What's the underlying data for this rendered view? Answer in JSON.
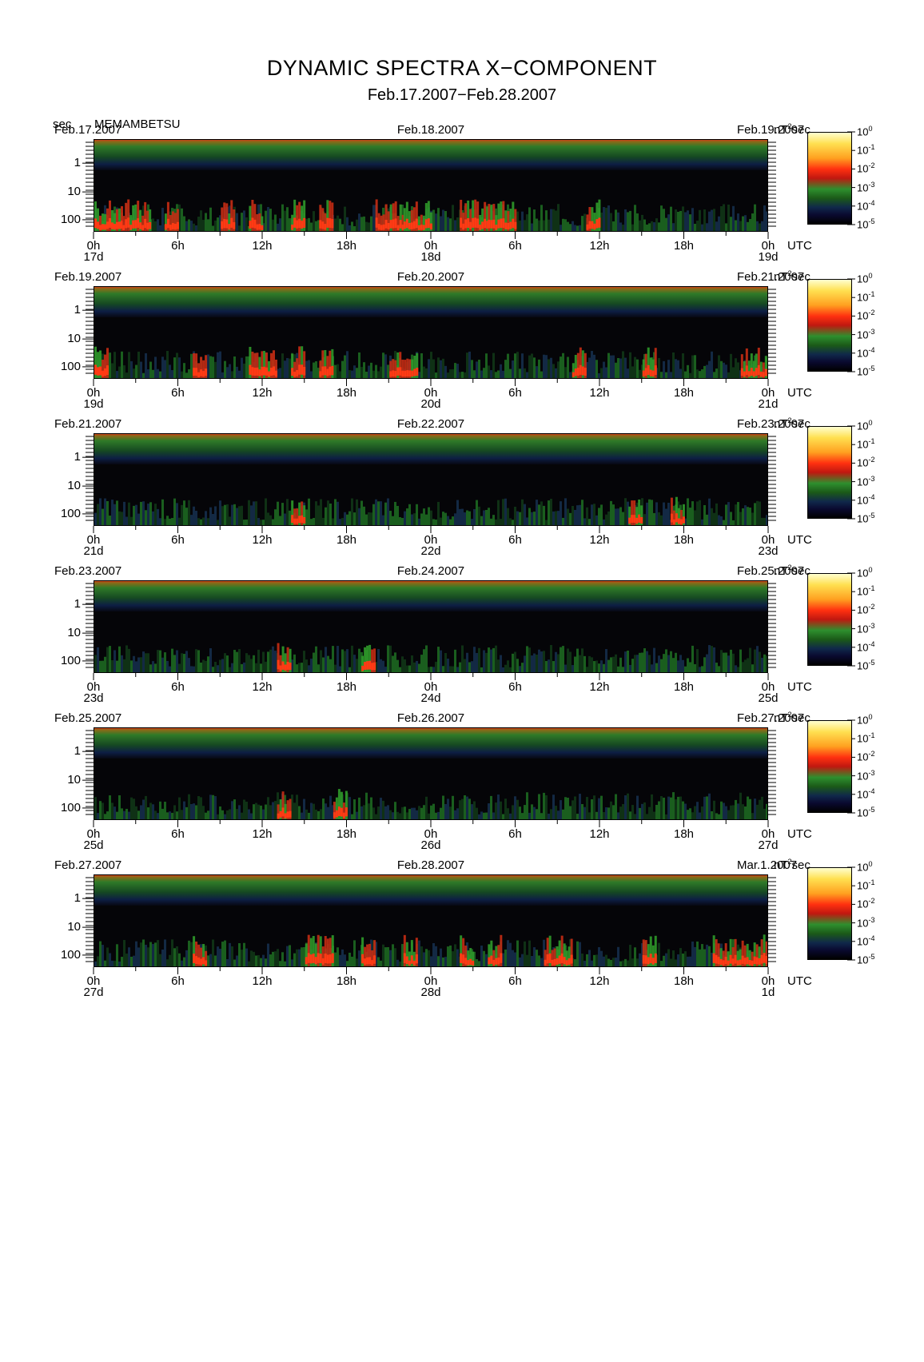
{
  "header": {
    "title": "DYNAMIC SPECTRA X−COMPONENT",
    "subtitle": "Feb.17.2007−Feb.28.2007",
    "ylabel_unit": "sec",
    "station": "MEMAMBETSU"
  },
  "chart_data": [
    {
      "type": "heatmap",
      "date_left": "Feb.17.2007",
      "date_mid": "Feb.18.2007",
      "date_right": "Feb.19.2007",
      "y_ticks": [
        "1",
        "10",
        "100"
      ],
      "x_ticks": [
        "0h",
        "6h",
        "12h",
        "18h",
        "0h",
        "6h",
        "12h",
        "18h",
        "0h"
      ],
      "day_marks": [
        "17d",
        "18d",
        "19d"
      ],
      "x_unit": "UTC",
      "colorbar_unit": "nT",
      "colorbar_unit_exp": "2",
      "colorbar_unit_suffix": "sec",
      "colorbar_ticks": [
        {
          "base": "10",
          "exp": "0"
        },
        {
          "base": "10",
          "exp": "-1"
        },
        {
          "base": "10",
          "exp": "-2"
        },
        {
          "base": "10",
          "exp": "-3"
        },
        {
          "base": "10",
          "exp": "-4"
        },
        {
          "base": "10",
          "exp": "-5"
        }
      ],
      "activity_hours": [
        [
          0,
          2
        ],
        [
          2,
          4
        ],
        [
          5,
          6
        ],
        [
          9,
          10
        ],
        [
          11,
          12
        ],
        [
          14,
          15
        ],
        [
          16,
          17
        ],
        [
          20,
          22
        ],
        [
          22,
          24
        ],
        [
          26,
          28
        ],
        [
          28,
          30
        ],
        [
          35,
          36
        ]
      ]
    },
    {
      "type": "heatmap",
      "date_left": "Feb.19.2007",
      "date_mid": "Feb.20.2007",
      "date_right": "Feb.21.2007",
      "y_ticks": [
        "1",
        "10",
        "100"
      ],
      "x_ticks": [
        "0h",
        "6h",
        "12h",
        "18h",
        "0h",
        "6h",
        "12h",
        "18h",
        "0h"
      ],
      "day_marks": [
        "19d",
        "20d",
        "21d"
      ],
      "x_unit": "UTC",
      "colorbar_unit": "nT",
      "colorbar_unit_exp": "2",
      "colorbar_unit_suffix": "sec",
      "colorbar_ticks": [
        {
          "base": "10",
          "exp": "0"
        },
        {
          "base": "10",
          "exp": "-1"
        },
        {
          "base": "10",
          "exp": "-2"
        },
        {
          "base": "10",
          "exp": "-3"
        },
        {
          "base": "10",
          "exp": "-4"
        },
        {
          "base": "10",
          "exp": "-5"
        }
      ],
      "activity_hours": [
        [
          0,
          1
        ],
        [
          7,
          8
        ],
        [
          11,
          12
        ],
        [
          12,
          13
        ],
        [
          14,
          15
        ],
        [
          16,
          17
        ],
        [
          21,
          23
        ],
        [
          34,
          35
        ],
        [
          39,
          40
        ],
        [
          46,
          48
        ]
      ]
    },
    {
      "type": "heatmap",
      "date_left": "Feb.21.2007",
      "date_mid": "Feb.22.2007",
      "date_right": "Feb.23.2007",
      "y_ticks": [
        "1",
        "10",
        "100"
      ],
      "x_ticks": [
        "0h",
        "6h",
        "12h",
        "18h",
        "0h",
        "6h",
        "12h",
        "18h",
        "0h"
      ],
      "day_marks": [
        "21d",
        "22d",
        "23d"
      ],
      "x_unit": "UTC",
      "colorbar_unit": "nT",
      "colorbar_unit_exp": "2",
      "colorbar_unit_suffix": "sec",
      "colorbar_ticks": [
        {
          "base": "10",
          "exp": "0"
        },
        {
          "base": "10",
          "exp": "-1"
        },
        {
          "base": "10",
          "exp": "-2"
        },
        {
          "base": "10",
          "exp": "-3"
        },
        {
          "base": "10",
          "exp": "-4"
        },
        {
          "base": "10",
          "exp": "-5"
        }
      ],
      "activity_hours": [
        [
          14,
          15
        ],
        [
          38,
          39
        ],
        [
          41,
          42
        ]
      ]
    },
    {
      "type": "heatmap",
      "date_left": "Feb.23.2007",
      "date_mid": "Feb.24.2007",
      "date_right": "Feb.25.2007",
      "y_ticks": [
        "1",
        "10",
        "100"
      ],
      "x_ticks": [
        "0h",
        "6h",
        "12h",
        "18h",
        "0h",
        "6h",
        "12h",
        "18h",
        "0h"
      ],
      "day_marks": [
        "23d",
        "24d",
        "25d"
      ],
      "x_unit": "UTC",
      "colorbar_unit": "nT",
      "colorbar_unit_exp": "2",
      "colorbar_unit_suffix": "sec",
      "colorbar_ticks": [
        {
          "base": "10",
          "exp": "0"
        },
        {
          "base": "10",
          "exp": "-1"
        },
        {
          "base": "10",
          "exp": "-2"
        },
        {
          "base": "10",
          "exp": "-3"
        },
        {
          "base": "10",
          "exp": "-4"
        },
        {
          "base": "10",
          "exp": "-5"
        }
      ],
      "activity_hours": [
        [
          13,
          14
        ],
        [
          19,
          20
        ]
      ]
    },
    {
      "type": "heatmap",
      "date_left": "Feb.25.2007",
      "date_mid": "Feb.26.2007",
      "date_right": "Feb.27.2007",
      "y_ticks": [
        "1",
        "10",
        "100"
      ],
      "x_ticks": [
        "0h",
        "6h",
        "12h",
        "18h",
        "0h",
        "6h",
        "12h",
        "18h",
        "0h"
      ],
      "day_marks": [
        "25d",
        "26d",
        "27d"
      ],
      "x_unit": "UTC",
      "colorbar_unit": "nT",
      "colorbar_unit_exp": "2",
      "colorbar_unit_suffix": "sec",
      "colorbar_ticks": [
        {
          "base": "10",
          "exp": "0"
        },
        {
          "base": "10",
          "exp": "-1"
        },
        {
          "base": "10",
          "exp": "-2"
        },
        {
          "base": "10",
          "exp": "-3"
        },
        {
          "base": "10",
          "exp": "-4"
        },
        {
          "base": "10",
          "exp": "-5"
        }
      ],
      "activity_hours": [
        [
          13,
          14
        ],
        [
          17,
          18
        ]
      ]
    },
    {
      "type": "heatmap",
      "date_left": "Feb.27.2007",
      "date_mid": "Feb.28.2007",
      "date_right": "Mar.1.2007",
      "y_ticks": [
        "1",
        "10",
        "100"
      ],
      "x_ticks": [
        "0h",
        "6h",
        "12h",
        "18h",
        "0h",
        "6h",
        "12h",
        "18h",
        "0h"
      ],
      "day_marks": [
        "27d",
        "28d",
        "1d"
      ],
      "x_unit": "UTC",
      "colorbar_unit": "nT",
      "colorbar_unit_exp": "2",
      "colorbar_unit_suffix": "sec",
      "colorbar_ticks": [
        {
          "base": "10",
          "exp": "0"
        },
        {
          "base": "10",
          "exp": "-1"
        },
        {
          "base": "10",
          "exp": "-2"
        },
        {
          "base": "10",
          "exp": "-3"
        },
        {
          "base": "10",
          "exp": "-4"
        },
        {
          "base": "10",
          "exp": "-5"
        }
      ],
      "activity_hours": [
        [
          7,
          8
        ],
        [
          15,
          17
        ],
        [
          19,
          20
        ],
        [
          22,
          23
        ],
        [
          26,
          27
        ],
        [
          28,
          29
        ],
        [
          32,
          34
        ],
        [
          39,
          40
        ],
        [
          44,
          48
        ]
      ]
    }
  ]
}
